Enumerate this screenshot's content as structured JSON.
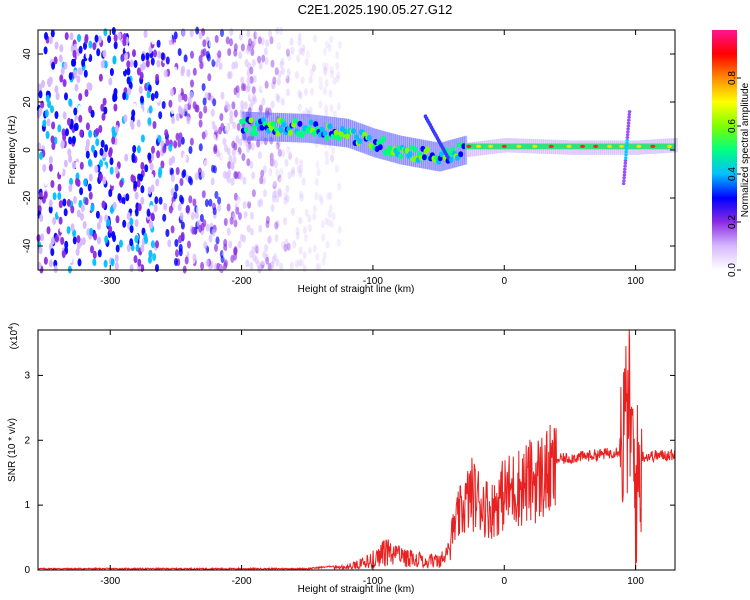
{
  "title": "C2E1.2025.190.05.27.G12",
  "chart_data": [
    {
      "type": "heatmap",
      "name": "spectrogram",
      "xlabel": "Height of straight line (km)",
      "ylabel": "Frequency (Hz)",
      "xlim": [
        -355,
        130
      ],
      "ylim": [
        -50,
        50
      ],
      "xticks": [
        -300,
        -200,
        -100,
        0,
        100
      ],
      "yticks": [
        -40,
        -20,
        0,
        20,
        40
      ],
      "colorbar": {
        "label": "Normalized spectral amplitude",
        "range": [
          0,
          1
        ],
        "ticks": [
          0.0,
          0.2,
          0.4,
          0.6,
          0.8
        ],
        "colors": [
          "#ffffff",
          "#d6b8ff",
          "#8a2be2",
          "#0000ff",
          "#00bfff",
          "#00ff7f",
          "#7fff00",
          "#ffff00",
          "#ff8c00",
          "#ff0000",
          "#ff1493"
        ]
      },
      "features": {
        "noise_region_x": [
          -355,
          -140
        ],
        "signal_track": [
          {
            "x": -200,
            "f": 10
          },
          {
            "x": -150,
            "f": 9
          },
          {
            "x": -120,
            "f": 7
          },
          {
            "x": -100,
            "f": 3
          },
          {
            "x": -80,
            "f": 0
          },
          {
            "x": -50,
            "f": -3
          },
          {
            "x": -30,
            "f": 0
          },
          {
            "x": 0,
            "f": 2
          },
          {
            "x": 50,
            "f": 1
          },
          {
            "x": 100,
            "f": 1
          },
          {
            "x": 130,
            "f": 2
          }
        ],
        "strong_line_x": [
          -30,
          130
        ],
        "strong_line_f": 1.5,
        "spike_x": 93
      }
    },
    {
      "type": "line",
      "name": "snr",
      "xlabel": "Height of straight line (km)",
      "ylabel": "SNR (10 * v/v)",
      "y_multiplier_label": "(x10",
      "y_multiplier_exp": "4",
      "y_multiplier_close": ")",
      "xlim": [
        -355,
        130
      ],
      "ylim": [
        0,
        3.7
      ],
      "xticks": [
        -300,
        -200,
        -100,
        0,
        100
      ],
      "yticks": [
        0,
        1,
        2,
        3
      ],
      "line_color": "#e82020",
      "envelope": [
        {
          "x": -355,
          "y": 0.02
        },
        {
          "x": -150,
          "y": 0.02
        },
        {
          "x": -120,
          "y": 0.08
        },
        {
          "x": -100,
          "y": 0.3
        },
        {
          "x": -90,
          "y": 0.5
        },
        {
          "x": -75,
          "y": 0.35
        },
        {
          "x": -60,
          "y": 0.25
        },
        {
          "x": -45,
          "y": 0.3
        },
        {
          "x": -35,
          "y": 0.9
        },
        {
          "x": -25,
          "y": 1.3
        },
        {
          "x": -10,
          "y": 1.0
        },
        {
          "x": 0,
          "y": 1.3
        },
        {
          "x": 20,
          "y": 1.5
        },
        {
          "x": 40,
          "y": 1.7
        },
        {
          "x": 60,
          "y": 1.75
        },
        {
          "x": 80,
          "y": 1.8
        },
        {
          "x": 88,
          "y": 1.85
        },
        {
          "x": 95,
          "y": 2.5
        },
        {
          "x": 100,
          "y": 1.2
        },
        {
          "x": 105,
          "y": 1.75
        },
        {
          "x": 130,
          "y": 1.78
        }
      ]
    }
  ]
}
